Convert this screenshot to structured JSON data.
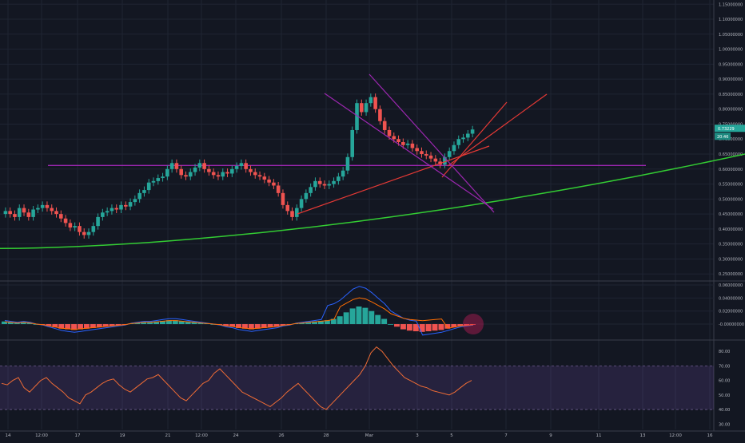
{
  "chart_data": [
    {
      "type": "candlestick",
      "panel": "price",
      "y_axis_labels": [
        "1.15000000",
        "1.10000000",
        "1.05000000",
        "1.00000000",
        "0.95000000",
        "0.90000000",
        "0.85000000",
        "0.80000000",
        "0.75000000",
        "0.70000000",
        "0.65000000",
        "0.60000000",
        "0.55000000",
        "0.50000000",
        "0.45000000",
        "0.40000000",
        "0.35000000",
        "0.30000000",
        "0.25000000"
      ],
      "y_axis_values": [
        1.15,
        1.1,
        1.05,
        1.0,
        0.95,
        0.9,
        0.85,
        0.8,
        0.75,
        0.7,
        0.65,
        0.6,
        0.55,
        0.5,
        0.45,
        0.4,
        0.35,
        0.3,
        0.25
      ],
      "ylim": [
        0.232,
        1.164
      ],
      "current_price_label": "0.73229",
      "countdown_label": "20:46",
      "current_price": 0.732,
      "series_close": [
        0.46,
        0.45,
        0.44,
        0.47,
        0.455,
        0.44,
        0.465,
        0.47,
        0.48,
        0.47,
        0.46,
        0.45,
        0.435,
        0.42,
        0.405,
        0.41,
        0.39,
        0.38,
        0.39,
        0.41,
        0.44,
        0.455,
        0.46,
        0.47,
        0.465,
        0.48,
        0.475,
        0.49,
        0.5,
        0.52,
        0.53,
        0.555,
        0.56,
        0.57,
        0.575,
        0.6,
        0.62,
        0.6,
        0.58,
        0.575,
        0.59,
        0.605,
        0.62,
        0.6,
        0.59,
        0.58,
        0.575,
        0.59,
        0.585,
        0.6,
        0.61,
        0.62,
        0.6,
        0.59,
        0.58,
        0.575,
        0.565,
        0.555,
        0.545,
        0.52,
        0.48,
        0.46,
        0.44,
        0.47,
        0.5,
        0.52,
        0.54,
        0.56,
        0.55,
        0.545,
        0.55,
        0.56,
        0.575,
        0.595,
        0.64,
        0.73,
        0.82,
        0.79,
        0.82,
        0.84,
        0.8,
        0.76,
        0.73,
        0.71,
        0.7,
        0.69,
        0.68,
        0.685,
        0.67,
        0.66,
        0.65,
        0.645,
        0.635,
        0.625,
        0.615,
        0.64,
        0.66,
        0.68,
        0.7,
        0.705,
        0.718,
        0.732
      ],
      "annotations": [
        {
          "type": "horizontal_line",
          "value": 0.612,
          "color": "#9c27b0"
        },
        {
          "type": "curve",
          "description": "moving average",
          "values_from": 0.335,
          "values_to": 0.65,
          "color": "#33cc33"
        },
        {
          "type": "trendline",
          "color": "#e53935"
        },
        {
          "type": "trendline",
          "color": "#e53935"
        },
        {
          "type": "wedge_lines",
          "color": "#9c27b0"
        }
      ]
    },
    {
      "type": "histogram",
      "panel": "macd",
      "y_axis_labels": [
        "0.06000000",
        "0.04000000",
        "0.02000000",
        "-0.00000000"
      ],
      "y_axis_values": [
        0.06,
        0.04,
        0.02,
        0.0
      ],
      "ylim": [
        -0.022,
        0.0637
      ],
      "positive_color": "#26a69a",
      "negative_color": "#ef5350",
      "histogram": [
        0.004,
        0.003,
        0.002,
        0.003,
        0.002,
        0.0,
        -0.001,
        -0.003,
        -0.005,
        -0.007,
        -0.008,
        -0.009,
        -0.008,
        -0.007,
        -0.006,
        -0.005,
        -0.004,
        -0.003,
        -0.002,
        -0.001,
        0.001,
        0.002,
        0.003,
        0.003,
        0.004,
        0.005,
        0.006,
        0.006,
        0.005,
        0.004,
        0.003,
        0.002,
        0.001,
        0.0,
        -0.001,
        -0.003,
        -0.004,
        -0.006,
        -0.007,
        -0.008,
        -0.007,
        -0.006,
        -0.005,
        -0.004,
        -0.002,
        -0.001,
        0.001,
        0.002,
        0.003,
        0.004,
        0.005,
        0.006,
        0.008,
        0.012,
        0.018,
        0.024,
        0.027,
        0.025,
        0.02,
        0.014,
        0.008,
        0.0,
        -0.004,
        -0.008,
        -0.01,
        -0.011,
        -0.012,
        -0.011,
        -0.01,
        -0.009,
        -0.007,
        -0.005,
        -0.003,
        -0.002,
        -0.001
      ]
    },
    {
      "type": "line",
      "panel": "rsi",
      "y_axis_labels": [
        "80.00",
        "70.00",
        "60.00",
        "50.00",
        "40.00",
        "30.00"
      ],
      "y_axis_values": [
        80,
        70,
        60,
        50,
        40,
        30
      ],
      "ylim": [
        26.3,
        85.6
      ],
      "band": [
        40,
        70
      ],
      "values": [
        58,
        57,
        60,
        62,
        55,
        52,
        56,
        60,
        62,
        58,
        55,
        52,
        48,
        46,
        44,
        50,
        52,
        55,
        58,
        60,
        61,
        57,
        54,
        52,
        55,
        58,
        61,
        62,
        64,
        60,
        56,
        52,
        48,
        46,
        50,
        54,
        58,
        60,
        65,
        68,
        64,
        60,
        56,
        52,
        50,
        48,
        46,
        44,
        42,
        45,
        48,
        52,
        55,
        58,
        54,
        50,
        46,
        42,
        40,
        44,
        48,
        52,
        56,
        60,
        64,
        70,
        79,
        83,
        80,
        75,
        70,
        66,
        62,
        60,
        58,
        56,
        55,
        53,
        52,
        51,
        50,
        52,
        55,
        58,
        60
      ]
    }
  ],
  "x_axis": {
    "labels": [
      "14",
      "12:00",
      "17",
      "19",
      "21",
      "12:00",
      "24",
      "26",
      "28",
      "Mar",
      "3",
      "5",
      "7",
      "9",
      "11",
      "13",
      "12:00",
      "16"
    ]
  }
}
